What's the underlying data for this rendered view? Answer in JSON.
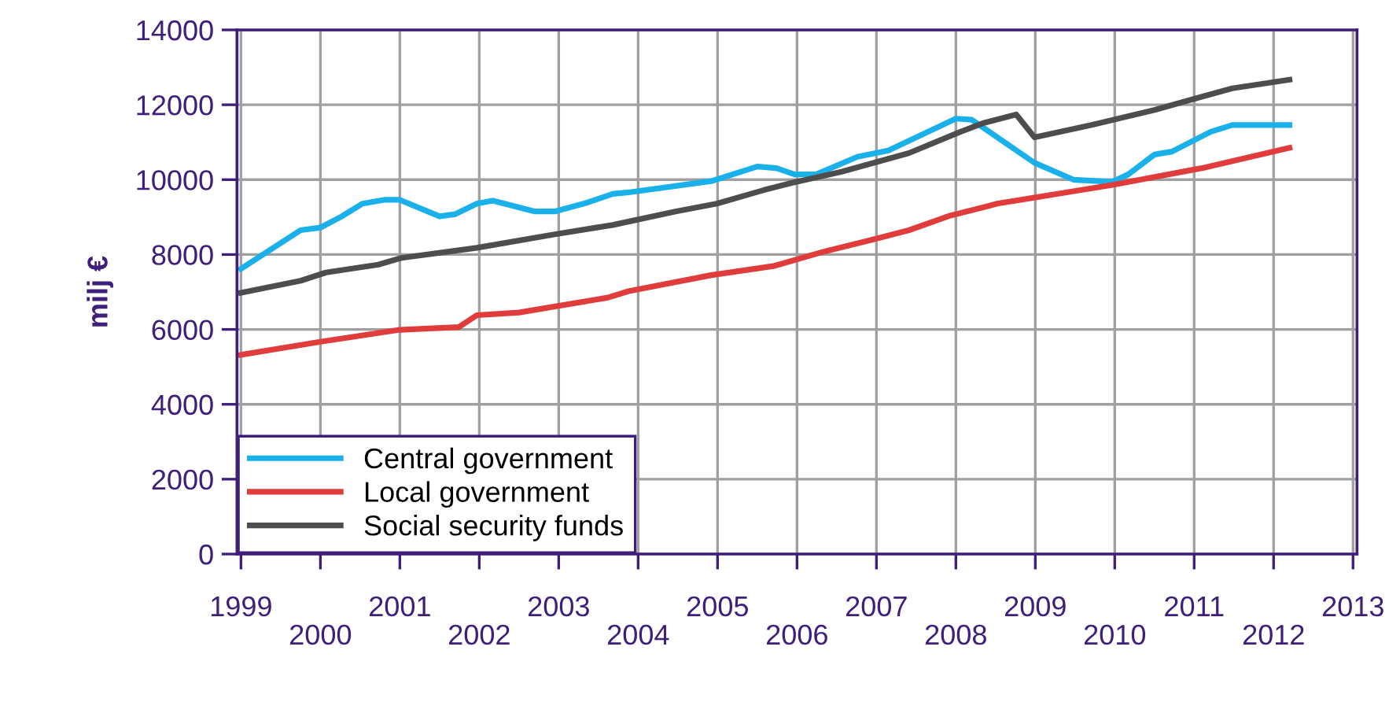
{
  "chart_data": {
    "type": "line",
    "ylabel": "milj €",
    "xlim": [
      1998.95,
      2013.05
    ],
    "ylim": [
      0,
      14000
    ],
    "xticks": [
      1999,
      {
        "value": 2000,
        "label": null
      },
      2001,
      {
        "value": 2002,
        "label": null
      },
      2003,
      {
        "value": 2004,
        "label": null
      },
      2005,
      {
        "value": 2006,
        "label": null
      },
      2007,
      {
        "value": 2008,
        "label": null
      },
      2009,
      {
        "value": 2010,
        "label": null
      },
      2011,
      {
        "value": 2012,
        "label": null
      },
      2013
    ],
    "x2lim": [
      1998.95,
      2013.05
    ],
    "x2ticks": [
      2000,
      2002,
      2004,
      2006,
      2008,
      2010,
      2012
    ],
    "yticks": [
      0,
      2000,
      4000,
      6000,
      8000,
      10000,
      12000,
      14000
    ],
    "grid": true,
    "legend": "bottom left",
    "line_style": "solid",
    "marker": "none",
    "series": [
      {
        "name": "Central government",
        "color": "#1ab0ea",
        "x": [
          1999.0,
          1999.75,
          2000.0,
          2000.27,
          2000.53,
          2000.8,
          2001.0,
          2001.5,
          2001.7,
          2001.97,
          2002.17,
          2002.7,
          2002.95,
          2003.35,
          2003.68,
          2003.88,
          2004.92,
          2005.5,
          2005.74,
          2005.97,
          2006.24,
          2006.76,
          2007.15,
          2008.0,
          2008.2,
          2008.99,
          2009.48,
          2009.97,
          2010.17,
          2010.5,
          2010.72,
          2011.21,
          2011.48,
          2012.2
        ],
        "values": [
          7620,
          8650,
          8720,
          9020,
          9360,
          9460,
          9460,
          9020,
          9080,
          9360,
          9440,
          9150,
          9150,
          9380,
          9620,
          9660,
          9960,
          10350,
          10310,
          10140,
          10140,
          10610,
          10780,
          11630,
          11600,
          10450,
          10000,
          9940,
          10140,
          10670,
          10750,
          11280,
          11460,
          11460
        ]
      },
      {
        "name": "Local government",
        "color": "#e03c3c",
        "x": [
          1999.0,
          2000.0,
          2001.0,
          2001.74,
          2001.97,
          2002.5,
          2003.62,
          2003.88,
          2004.92,
          2005.7,
          2006.36,
          2006.95,
          2007.41,
          2007.93,
          2008.4,
          2008.52,
          2009.97,
          2011.15,
          2012.2
        ],
        "values": [
          5320,
          5670,
          5990,
          6060,
          6380,
          6450,
          6850,
          7020,
          7450,
          7690,
          8090,
          8400,
          8650,
          9040,
          9290,
          9360,
          9860,
          10330,
          10850
        ]
      },
      {
        "name": "Social security funds",
        "color": "#4d4d4d",
        "x": [
          1999.0,
          1999.75,
          2000.07,
          2000.73,
          2001.02,
          2001.97,
          2002.95,
          2003.68,
          2004.47,
          2004.99,
          2005.58,
          2005.97,
          2006.56,
          2007.41,
          2008.06,
          2008.36,
          2008.76,
          2008.99,
          2009.71,
          2010.5,
          2010.95,
          2011.48,
          2012.2
        ],
        "values": [
          6980,
          7300,
          7520,
          7730,
          7910,
          8180,
          8540,
          8790,
          9150,
          9360,
          9720,
          9930,
          10210,
          10710,
          11280,
          11520,
          11740,
          11130,
          11460,
          11860,
          12130,
          12440,
          12670
        ]
      }
    ]
  }
}
